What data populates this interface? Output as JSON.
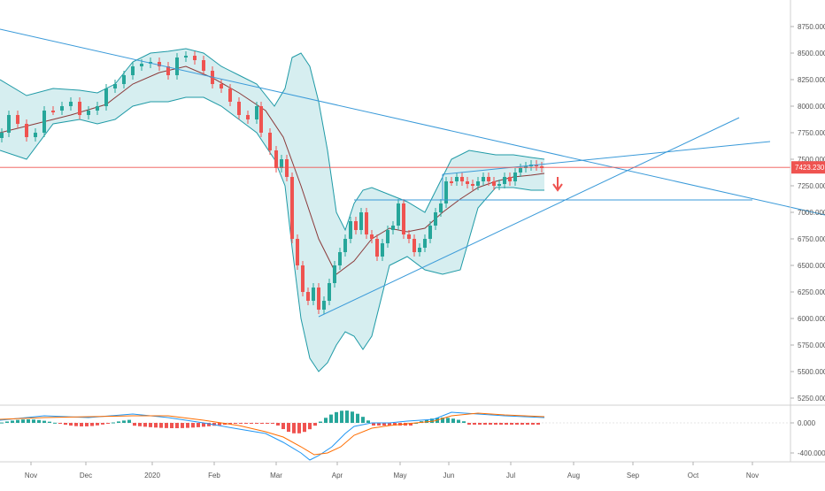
{
  "chart_data": [
    {
      "type": "candlestick",
      "panel": "price",
      "ylim": [
        5250,
        8750
      ],
      "y_ticks": [
        "8750.000",
        "8500.000",
        "8250.000",
        "8000.000",
        "7750.000",
        "7500.000",
        "7250.000",
        "7000.000",
        "6750.000",
        "6500.000",
        "6250.000",
        "6000.000",
        "5750.000",
        "5500.000",
        "5250.000"
      ],
      "last_price_label": "7423.230",
      "horizontal_levels": [
        7423.23,
        7100
      ],
      "indicators": [
        "bollinger-bands",
        "moving-average"
      ],
      "signal": "down-arrow",
      "colors": {
        "up": "#26a69a",
        "down": "#ef5350",
        "band": "#1f9aa6",
        "band_fill": "#d6eef0",
        "ma": "#8b3a3a",
        "trendline": "#3a9ad9",
        "price_line": "#ef5350"
      }
    },
    {
      "type": "histogram",
      "panel": "macd",
      "y_ticks": [
        "0.000",
        "-400.000"
      ],
      "series_colors": {
        "macd": "#2196f3",
        "signal": "#ff6d00",
        "hist_up": "#26a69a",
        "hist_down": "#ef5350"
      }
    }
  ],
  "x_axis": {
    "ticks": [
      "Nov",
      "Dec",
      "2020",
      "Feb",
      "Mar",
      "Apr",
      "May",
      "Jun",
      "Jul",
      "Aug",
      "Sep",
      "Oct",
      "Nov"
    ]
  }
}
